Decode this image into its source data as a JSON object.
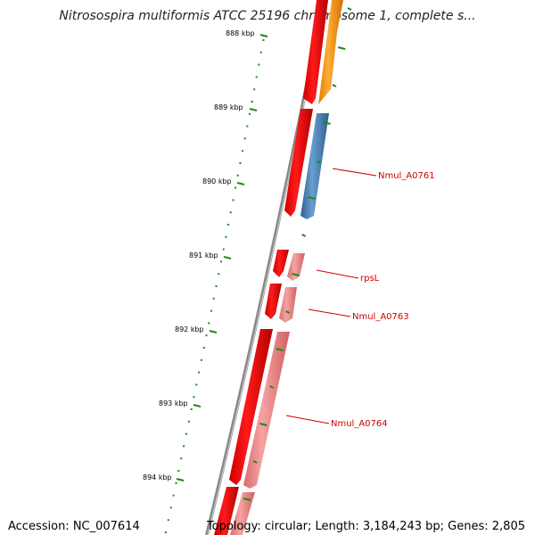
{
  "title": "Nitrosospira multiformis ATCC 25196 chromosome 1, complete s...",
  "ticks": [
    "888 kbp",
    "889 kbp",
    "890 kbp",
    "891 kbp",
    "892 kbp",
    "893 kbp",
    "894 kbp"
  ],
  "gene_labels": [
    "Nmul_A0761",
    "rpsL",
    "Nmul_A0763",
    "Nmul_A0764"
  ],
  "accession": "Accession: NC_007614",
  "stats": "Topology: circular; Length: 3,184,243 bp; Genes: 2,805",
  "colors": {
    "cds": "#ff0000",
    "gene_blue": "#4a7fb5",
    "gene_orange": "#ff9900",
    "gene_pink": "#f08a8a",
    "ticks": "#1a8a1a",
    "backbone": "#888888",
    "label_red": "#cc0000"
  }
}
